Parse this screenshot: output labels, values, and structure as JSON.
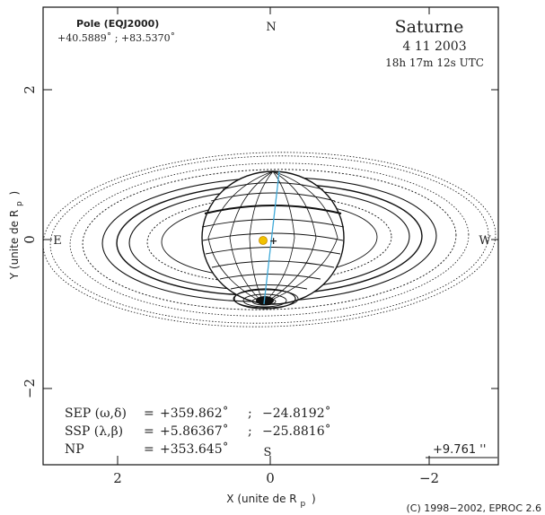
{
  "header": {
    "pole_label": "Pole (EQJ2000)",
    "pole_values": "+40.5889˚ ; +83.5370˚",
    "planet": "Saturne",
    "date": "4 11 2003",
    "time": "18h 17m 12s UTC"
  },
  "compass": {
    "north": "N",
    "south": "S",
    "east": "E",
    "west": "W"
  },
  "axes": {
    "x_title": "X (unite de R",
    "x_sub": "p",
    "x_close": ")",
    "y_title": "Y (unite de R",
    "y_sub": "p",
    "y_close": ")",
    "x_ticks": [
      "2",
      "0",
      "−2"
    ],
    "y_ticks": [
      "2",
      "0",
      "−2"
    ]
  },
  "readout": {
    "sep_label": "SEP (ω,δ)",
    "sep_eq": "=",
    "sep_val1": "+359.862˚",
    "sep_sep": ";",
    "sep_val2": "−24.8192˚",
    "ssp_label": "SSP (λ,β)",
    "ssp_eq": "=",
    "ssp_val1": "+5.86367˚",
    "ssp_sep": ";",
    "ssp_val2": "−25.8816˚",
    "np_label": "NP",
    "np_eq": "=",
    "np_val": "+353.645˚",
    "scale_value": "+9.761 ''"
  },
  "footer": {
    "copyright": "(C) 1998−2002, EPROC 2.6"
  },
  "colors": {
    "axis_line": "#3fa9d8",
    "sun_marker": "#f2c200",
    "ink": "#111111"
  }
}
